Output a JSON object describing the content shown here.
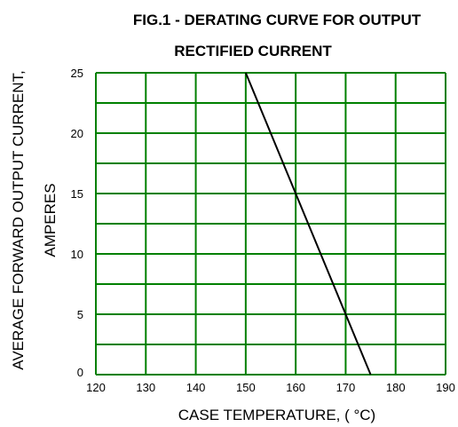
{
  "chart_data": {
    "type": "line",
    "title": "FIG.1 - DERATING CURVE FOR OUTPUT",
    "subtitle": "RECTIFIED CURRENT",
    "xlabel": "CASE TEMPERATURE, ( °C)",
    "ylabel_line1": "AVERAGE FORWARD OUTPUT CURRENT,",
    "ylabel_line2": "AMPERES",
    "xlim": [
      120,
      190
    ],
    "ylim": [
      0,
      25
    ],
    "x_ticks": [
      120,
      130,
      140,
      150,
      160,
      170,
      180,
      190
    ],
    "y_ticks": [
      0,
      5,
      10,
      15,
      20,
      25
    ],
    "x_tick_labels": [
      "120",
      "130",
      "140",
      "150",
      "160",
      "170",
      "180",
      "190"
    ],
    "y_tick_labels": [
      "0",
      "5",
      "10",
      "15",
      "20",
      "25"
    ],
    "grid": true,
    "grid_color": "#008000",
    "line_color": "#000000",
    "series": [
      {
        "x": [
          150,
          175
        ],
        "y": [
          25,
          0
        ]
      }
    ]
  }
}
